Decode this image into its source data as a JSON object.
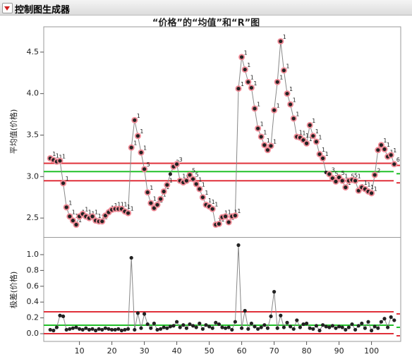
{
  "header": {
    "title": "控制图生成器"
  },
  "chart_data": [
    {
      "type": "line",
      "title": "“价格”的“均值”和“R”图",
      "ylabel": "平均值(价格)",
      "x": [
        1,
        2,
        3,
        4,
        5,
        6,
        7,
        8,
        9,
        10,
        11,
        12,
        13,
        14,
        15,
        16,
        17,
        18,
        19,
        20,
        21,
        22,
        23,
        24,
        25,
        26,
        27,
        28,
        29,
        30,
        31,
        32,
        33,
        34,
        35,
        36,
        37,
        38,
        39,
        40,
        41,
        42,
        43,
        44,
        45,
        46,
        47,
        48,
        49,
        50,
        51,
        52,
        53,
        54,
        55,
        56,
        57,
        58,
        59,
        60,
        61,
        62,
        63,
        64,
        65,
        66,
        67,
        68,
        69,
        70,
        71,
        72,
        73,
        74,
        75,
        76,
        77,
        78,
        79,
        80,
        81,
        82,
        83,
        84,
        85,
        86,
        87,
        88,
        89,
        90,
        91,
        92,
        93,
        94,
        95,
        96,
        97,
        98,
        99,
        100,
        101,
        102,
        103,
        104,
        105,
        106,
        107
      ],
      "values": [
        3.22,
        3.2,
        3.18,
        3.19,
        2.92,
        2.63,
        2.52,
        2.47,
        2.42,
        2.52,
        2.55,
        2.52,
        2.5,
        2.52,
        2.47,
        2.46,
        2.46,
        2.53,
        2.57,
        2.6,
        2.61,
        2.61,
        2.61,
        2.58,
        2.56,
        3.35,
        3.68,
        3.49,
        3.29,
        3.09,
        2.81,
        2.68,
        2.62,
        2.66,
        2.73,
        2.82,
        2.9,
        3.03,
        3.12,
        3.15,
        2.95,
        2.93,
        2.95,
        3.02,
        2.97,
        2.91,
        2.85,
        2.75,
        2.66,
        2.64,
        2.61,
        2.42,
        2.43,
        2.51,
        2.52,
        2.45,
        2.52,
        2.53,
        4.06,
        4.44,
        4.29,
        4.14,
        4.07,
        3.82,
        3.58,
        3.48,
        3.38,
        3.32,
        3.37,
        3.8,
        4.14,
        4.63,
        4.28,
        4.0,
        3.87,
        3.7,
        3.48,
        3.47,
        3.44,
        3.4,
        3.62,
        3.49,
        3.42,
        3.27,
        3.22,
        3.05,
        3.03,
        2.98,
        2.94,
        2.99,
        2.95,
        2.87,
        2.95,
        2.96,
        2.95,
        2.83,
        2.87,
        2.85,
        2.82,
        2.8,
        3.02,
        3.32,
        3.38,
        3.33,
        3.24,
        3.26,
        3.15
      ],
      "test_labels": [
        "1",
        "1",
        "1",
        "1",
        "1",
        "1",
        "1",
        "1",
        "1",
        "1",
        "1",
        "1",
        "1",
        "1",
        "1",
        "1",
        "1",
        "1",
        "1",
        "1",
        "1",
        "1",
        "1",
        "1",
        "1",
        "1",
        "1",
        "1",
        "1",
        "5",
        "1",
        "1",
        "1",
        "1",
        "1",
        "1",
        "1",
        null,
        "3",
        "3",
        "1",
        "1",
        "1",
        "5",
        "5",
        "1",
        "1",
        "1",
        "1",
        "1",
        "1",
        "1",
        "1",
        "1",
        "1",
        "1",
        "1",
        "1",
        "1",
        "1",
        "1",
        "1",
        "1",
        "1",
        "1",
        "1",
        "1",
        "1",
        "1",
        "1",
        "1",
        "1",
        "1",
        "1",
        "1",
        "1",
        "1",
        "1",
        "1",
        "1",
        "1",
        "1",
        "1",
        "1",
        "1",
        null,
        "3",
        "5",
        "1",
        "5",
        "1",
        "1",
        "5",
        "5",
        "1",
        "1",
        "1",
        "1",
        "1",
        "1",
        "2",
        "1",
        "1",
        "1",
        "1",
        "1",
        "6"
      ],
      "ucl": 3.16,
      "center": 3.06,
      "lcl": 2.95,
      "limit_color": "#e0303a",
      "center_color": "#22c02a",
      "line_color": "#888888",
      "point_color": "#222222",
      "flag_color": "#f08a96",
      "xlim": [
        -1,
        109
      ],
      "ylim": [
        2.28,
        4.805
      ],
      "yticks": [
        2.5,
        {
          "value": 3,
          "label": "3.0"
        },
        3.5,
        {
          "value": 4,
          "label": "4.0"
        },
        4.5
      ]
    },
    {
      "type": "line",
      "ylabel": "极差(价格)",
      "x": [
        1,
        2,
        3,
        4,
        5,
        6,
        7,
        8,
        9,
        10,
        11,
        12,
        13,
        14,
        15,
        16,
        17,
        18,
        19,
        20,
        21,
        22,
        23,
        24,
        25,
        26,
        27,
        28,
        29,
        30,
        31,
        32,
        33,
        34,
        35,
        36,
        37,
        38,
        39,
        40,
        41,
        42,
        43,
        44,
        45,
        46,
        47,
        48,
        49,
        50,
        51,
        52,
        53,
        54,
        55,
        56,
        57,
        58,
        59,
        60,
        61,
        62,
        63,
        64,
        65,
        66,
        67,
        68,
        69,
        70,
        71,
        72,
        73,
        74,
        75,
        76,
        77,
        78,
        79,
        80,
        81,
        82,
        83,
        84,
        85,
        86,
        87,
        88,
        89,
        90,
        91,
        92,
        93,
        94,
        95,
        96,
        97,
        98,
        99,
        100,
        101,
        102,
        103,
        104,
        105,
        106,
        107
      ],
      "values": [
        0.05,
        0.04,
        0.08,
        0.23,
        0.22,
        0.05,
        0.06,
        0.07,
        0.08,
        0.06,
        0.05,
        0.07,
        0.05,
        0.06,
        0.04,
        0.06,
        0.05,
        0.07,
        0.06,
        0.05,
        0.05,
        0.06,
        0.04,
        0.05,
        0.06,
        0.96,
        0.05,
        0.26,
        0.07,
        0.25,
        0.12,
        0.07,
        0.13,
        0.05,
        0.06,
        0.08,
        0.07,
        0.09,
        0.1,
        0.15,
        0.08,
        0.11,
        0.07,
        0.12,
        0.1,
        0.08,
        0.13,
        0.06,
        0.11,
        0.09,
        0.07,
        0.14,
        0.12,
        0.08,
        0.07,
        0.08,
        0.05,
        0.15,
        1.12,
        0.07,
        0.29,
        0.06,
        0.13,
        0.09,
        0.06,
        0.08,
        0.11,
        0.07,
        0.22,
        0.53,
        0.07,
        0.23,
        0.08,
        0.14,
        0.09,
        0.06,
        0.17,
        0.08,
        0.12,
        0.13,
        0.07,
        0.06,
        0.1,
        0.04,
        0.11,
        0.09,
        0.08,
        0.1,
        0.07,
        0.09,
        0.08,
        0.05,
        0.08,
        0.12,
        0.05,
        0.1,
        0.13,
        0.07,
        0.15,
        0.04,
        0.09,
        0.07,
        0.15,
        0.19,
        0.08,
        0.21,
        0.17
      ],
      "ucl": 0.277,
      "center": 0.107,
      "lcl": 0,
      "limit_color": "#e0303a",
      "center_color": "#22c02a",
      "line_color": "#888888",
      "point_color": "#222222",
      "xlim": [
        -1,
        109
      ],
      "ylim": [
        -0.098,
        1.205
      ],
      "yticks": [
        {
          "value": 0,
          "label": "0.0"
        },
        {
          "value": 0.2,
          "label": "0.2"
        },
        {
          "value": 0.4,
          "label": "0.4"
        },
        {
          "value": 0.6,
          "label": "0.6"
        },
        {
          "value": 0.8,
          "label": "0.8"
        },
        {
          "value": 1,
          "label": "1.0"
        }
      ],
      "xticks": [
        10,
        20,
        30,
        40,
        50,
        60,
        70,
        80,
        90,
        100
      ]
    }
  ]
}
